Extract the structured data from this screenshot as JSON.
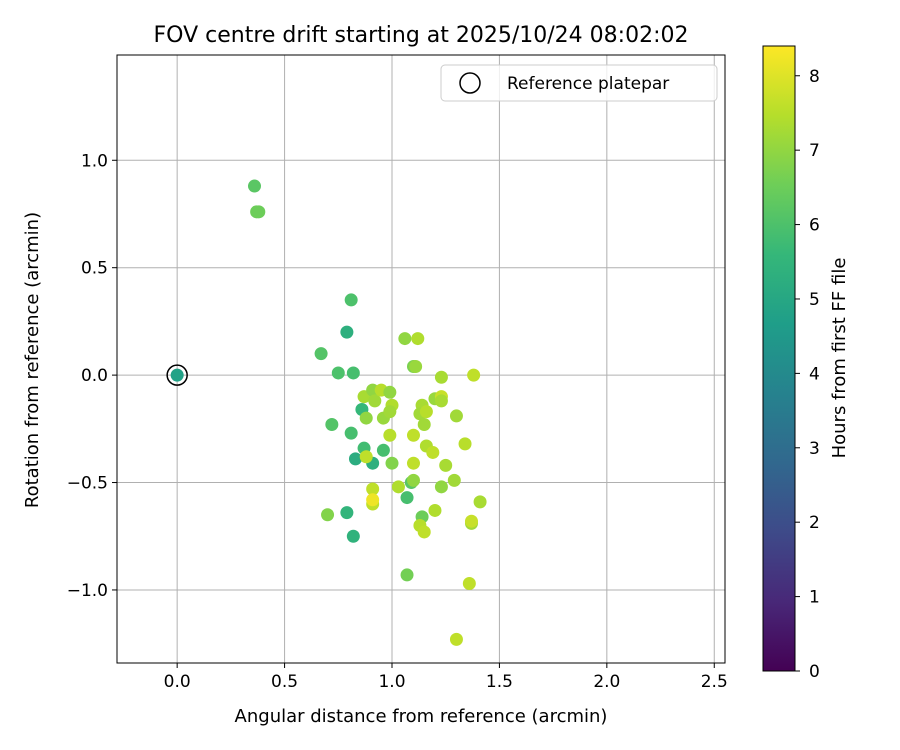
{
  "chart_data": {
    "type": "scatter",
    "title": "FOV centre drift starting at 2025/10/24 08:02:02",
    "xlabel": "Angular distance from reference (arcmin)",
    "ylabel": "Rotation from reference (arcmin)",
    "xlim": [
      -0.28,
      2.55
    ],
    "ylim": [
      -1.34,
      1.49
    ],
    "x_ticks": [
      0.0,
      0.5,
      1.0,
      1.5,
      2.0,
      2.5
    ],
    "x_tick_labels": [
      "0.0",
      "0.5",
      "1.0",
      "1.5",
      "2.0",
      "2.5"
    ],
    "y_ticks": [
      -1.0,
      -0.5,
      0.0,
      0.5,
      1.0
    ],
    "y_tick_labels": [
      "−1.0",
      "−0.5",
      "0.0",
      "0.5",
      "1.0"
    ],
    "grid": true,
    "legend": {
      "position": "top-right",
      "entries": [
        "Reference platepar"
      ]
    },
    "reference_point": {
      "label": "Reference platepar",
      "x": 0.0,
      "y": 0.0
    },
    "colorbar": {
      "label": "Hours from first FF file",
      "min": 0,
      "max": 8.4,
      "ticks": [
        0,
        1,
        2,
        3,
        4,
        5,
        6,
        7,
        8
      ],
      "tick_labels": [
        "0",
        "1",
        "2",
        "3",
        "4",
        "5",
        "6",
        "7",
        "8"
      ],
      "colormap": "viridis"
    },
    "points": [
      {
        "x": 0.0,
        "y": 0.0,
        "hours": 4.8
      },
      {
        "x": 0.36,
        "y": 0.88,
        "hours": 6.2
      },
      {
        "x": 0.38,
        "y": 0.76,
        "hours": 6.5
      },
      {
        "x": 0.37,
        "y": 0.76,
        "hours": 6.5
      },
      {
        "x": 0.81,
        "y": 0.35,
        "hours": 6.0
      },
      {
        "x": 0.79,
        "y": 0.2,
        "hours": 5.3
      },
      {
        "x": 0.67,
        "y": 0.1,
        "hours": 6.1
      },
      {
        "x": 0.75,
        "y": 0.01,
        "hours": 6.0
      },
      {
        "x": 0.82,
        "y": 0.01,
        "hours": 5.9
      },
      {
        "x": 0.86,
        "y": -0.16,
        "hours": 5.6
      },
      {
        "x": 0.72,
        "y": -0.23,
        "hours": 6.1
      },
      {
        "x": 0.81,
        "y": -0.27,
        "hours": 5.9
      },
      {
        "x": 0.87,
        "y": -0.34,
        "hours": 5.8
      },
      {
        "x": 0.83,
        "y": -0.39,
        "hours": 5.2
      },
      {
        "x": 0.91,
        "y": -0.41,
        "hours": 5.3
      },
      {
        "x": 0.96,
        "y": -0.35,
        "hours": 5.9
      },
      {
        "x": 0.87,
        "y": -0.1,
        "hours": 7.3
      },
      {
        "x": 0.91,
        "y": -0.07,
        "hours": 7.0
      },
      {
        "x": 0.92,
        "y": -0.12,
        "hours": 7.2
      },
      {
        "x": 0.95,
        "y": -0.07,
        "hours": 7.5
      },
      {
        "x": 0.99,
        "y": -0.08,
        "hours": 7.0
      },
      {
        "x": 0.88,
        "y": -0.2,
        "hours": 7.0
      },
      {
        "x": 0.96,
        "y": -0.2,
        "hours": 7.1
      },
      {
        "x": 1.0,
        "y": -0.14,
        "hours": 7.4
      },
      {
        "x": 0.99,
        "y": -0.17,
        "hours": 7.2
      },
      {
        "x": 0.99,
        "y": -0.28,
        "hours": 7.5
      },
      {
        "x": 0.88,
        "y": -0.38,
        "hours": 7.6
      },
      {
        "x": 1.0,
        "y": -0.41,
        "hours": 6.8
      },
      {
        "x": 0.91,
        "y": -0.53,
        "hours": 7.6
      },
      {
        "x": 0.91,
        "y": -0.6,
        "hours": 7.6
      },
      {
        "x": 0.91,
        "y": -0.58,
        "hours": 8.2
      },
      {
        "x": 0.79,
        "y": -0.64,
        "hours": 5.5
      },
      {
        "x": 0.7,
        "y": -0.65,
        "hours": 6.8
      },
      {
        "x": 0.82,
        "y": -0.75,
        "hours": 5.4
      },
      {
        "x": 1.03,
        "y": -0.52,
        "hours": 7.4
      },
      {
        "x": 1.07,
        "y": -0.57,
        "hours": 5.9
      },
      {
        "x": 1.09,
        "y": -0.5,
        "hours": 6.2
      },
      {
        "x": 1.1,
        "y": -0.49,
        "hours": 7.0
      },
      {
        "x": 1.1,
        "y": -0.41,
        "hours": 7.6
      },
      {
        "x": 1.1,
        "y": -0.28,
        "hours": 7.6
      },
      {
        "x": 1.06,
        "y": 0.17,
        "hours": 7.0
      },
      {
        "x": 1.12,
        "y": 0.17,
        "hours": 7.4
      },
      {
        "x": 1.1,
        "y": 0.04,
        "hours": 6.7
      },
      {
        "x": 1.11,
        "y": 0.04,
        "hours": 7.1
      },
      {
        "x": 1.14,
        "y": -0.14,
        "hours": 7.3
      },
      {
        "x": 1.13,
        "y": -0.18,
        "hours": 7.2
      },
      {
        "x": 1.16,
        "y": -0.17,
        "hours": 7.5
      },
      {
        "x": 1.15,
        "y": -0.23,
        "hours": 7.2
      },
      {
        "x": 1.16,
        "y": -0.33,
        "hours": 7.4
      },
      {
        "x": 1.19,
        "y": -0.36,
        "hours": 7.6
      },
      {
        "x": 1.2,
        "y": -0.11,
        "hours": 7.1
      },
      {
        "x": 1.23,
        "y": -0.1,
        "hours": 7.7
      },
      {
        "x": 1.23,
        "y": -0.12,
        "hours": 7.3
      },
      {
        "x": 1.23,
        "y": -0.01,
        "hours": 7.3
      },
      {
        "x": 1.25,
        "y": -0.42,
        "hours": 7.3
      },
      {
        "x": 1.23,
        "y": -0.52,
        "hours": 7.0
      },
      {
        "x": 1.3,
        "y": -0.19,
        "hours": 7.2
      },
      {
        "x": 1.34,
        "y": -0.32,
        "hours": 7.5
      },
      {
        "x": 1.38,
        "y": 0.0,
        "hours": 7.6
      },
      {
        "x": 1.29,
        "y": -0.49,
        "hours": 7.2
      },
      {
        "x": 1.14,
        "y": -0.66,
        "hours": 6.5
      },
      {
        "x": 1.13,
        "y": -0.7,
        "hours": 7.5
      },
      {
        "x": 1.15,
        "y": -0.73,
        "hours": 7.6
      },
      {
        "x": 1.2,
        "y": -0.63,
        "hours": 7.4
      },
      {
        "x": 1.07,
        "y": -0.93,
        "hours": 6.6
      },
      {
        "x": 1.37,
        "y": -0.69,
        "hours": 7.2
      },
      {
        "x": 1.37,
        "y": -0.68,
        "hours": 7.7
      },
      {
        "x": 1.41,
        "y": -0.59,
        "hours": 7.3
      },
      {
        "x": 1.36,
        "y": -0.97,
        "hours": 7.6
      },
      {
        "x": 1.3,
        "y": -1.23,
        "hours": 7.6
      }
    ]
  }
}
